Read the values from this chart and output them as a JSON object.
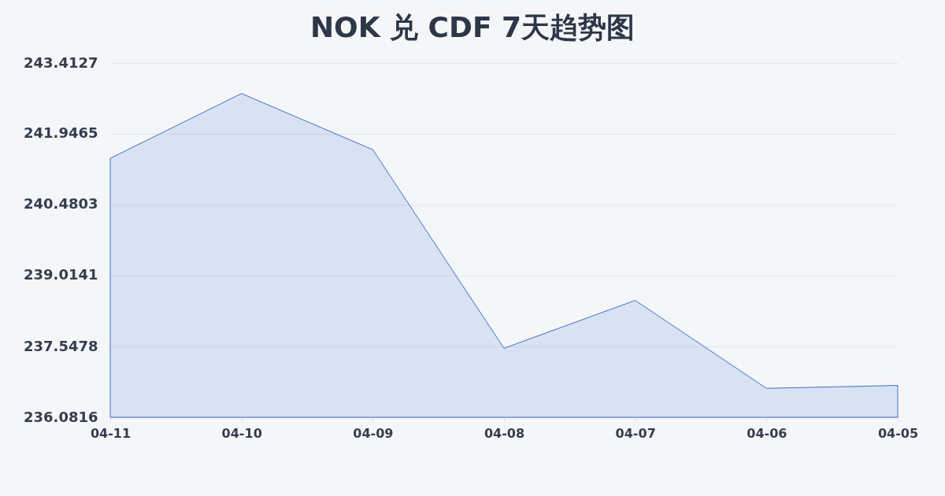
{
  "chart_data": {
    "type": "area",
    "title": "NOK 兑 CDF 7天趋势图",
    "categories": [
      "04-11",
      "04-10",
      "04-09",
      "04-08",
      "04-07",
      "04-06",
      "04-05"
    ],
    "series": [
      {
        "color": "#3d6fd0",
        "values": [
          241.44,
          242.78,
          241.62,
          237.51,
          238.5,
          236.68,
          236.74
        ]
      }
    ],
    "ylim": [
      236.0816,
      243.4127
    ],
    "yticks": [
      243.4127,
      241.9465,
      240.4803,
      239.0141,
      237.5478,
      236.0816
    ],
    "grid": "y"
  }
}
